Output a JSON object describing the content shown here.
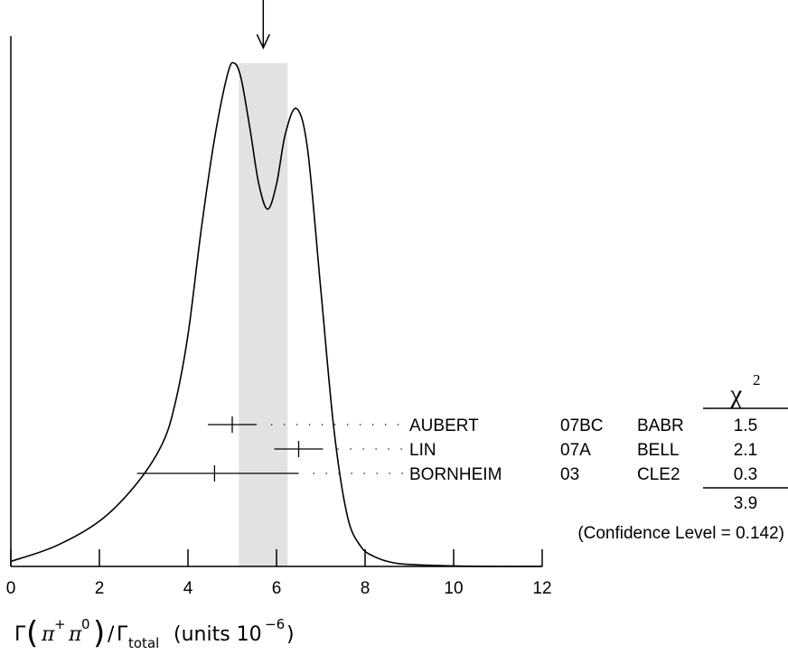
{
  "chart_data": {
    "type": "line",
    "xlim": [
      0,
      12
    ],
    "x_ticks": [
      "0",
      "2",
      "4",
      "6",
      "8",
      "10",
      "12"
    ],
    "grid": false,
    "xlabel": {
      "gamma": "Γ",
      "pi1": "π",
      "plus": "+",
      "pi2": "π",
      "zero": "0",
      "slash": "/",
      "gamma2": "Γ",
      "total": "total",
      "units": "(units 10",
      "exp": "−6",
      "close": ")"
    },
    "average": {
      "value": 5.7,
      "band": [
        5.15,
        6.25
      ]
    },
    "ideogram_curve": {
      "x": [
        0,
        1,
        2,
        2.8,
        3.4,
        3.7,
        4.0,
        4.3,
        4.6,
        4.9,
        5.05,
        5.2,
        5.4,
        5.6,
        5.8,
        6.0,
        6.2,
        6.45,
        6.7,
        7.0,
        7.3,
        7.6,
        7.9,
        8.2,
        8.6,
        9.0,
        10,
        11,
        12
      ],
      "y": [
        0.01,
        0.04,
        0.09,
        0.16,
        0.24,
        0.32,
        0.46,
        0.67,
        0.85,
        0.98,
        1.0,
        0.97,
        0.87,
        0.76,
        0.71,
        0.76,
        0.86,
        0.91,
        0.83,
        0.55,
        0.27,
        0.1,
        0.04,
        0.02,
        0.008,
        0.004,
        0.001,
        0.0,
        0.0
      ]
    },
    "measurements": [
      {
        "author": "AUBERT",
        "year": "07BC",
        "experiment": "BABR",
        "value": 5.0,
        "err_low": 0.55,
        "err_high": 0.55,
        "chi2": "1.5"
      },
      {
        "author": "LIN",
        "year": "07A",
        "experiment": "BELL",
        "value": 6.5,
        "err_low": 0.55,
        "err_high": 0.55,
        "chi2": "2.1"
      },
      {
        "author": "BORNHEIM",
        "year": "03",
        "experiment": "CLE2",
        "value": 4.6,
        "err_low": 1.75,
        "err_high": 1.9,
        "chi2": "0.3"
      }
    ],
    "chi2_header": "χ",
    "chi2_header_exp": "2",
    "chi2_total": "3.9",
    "confidence_text": "(Confidence Level = 0.142)"
  }
}
